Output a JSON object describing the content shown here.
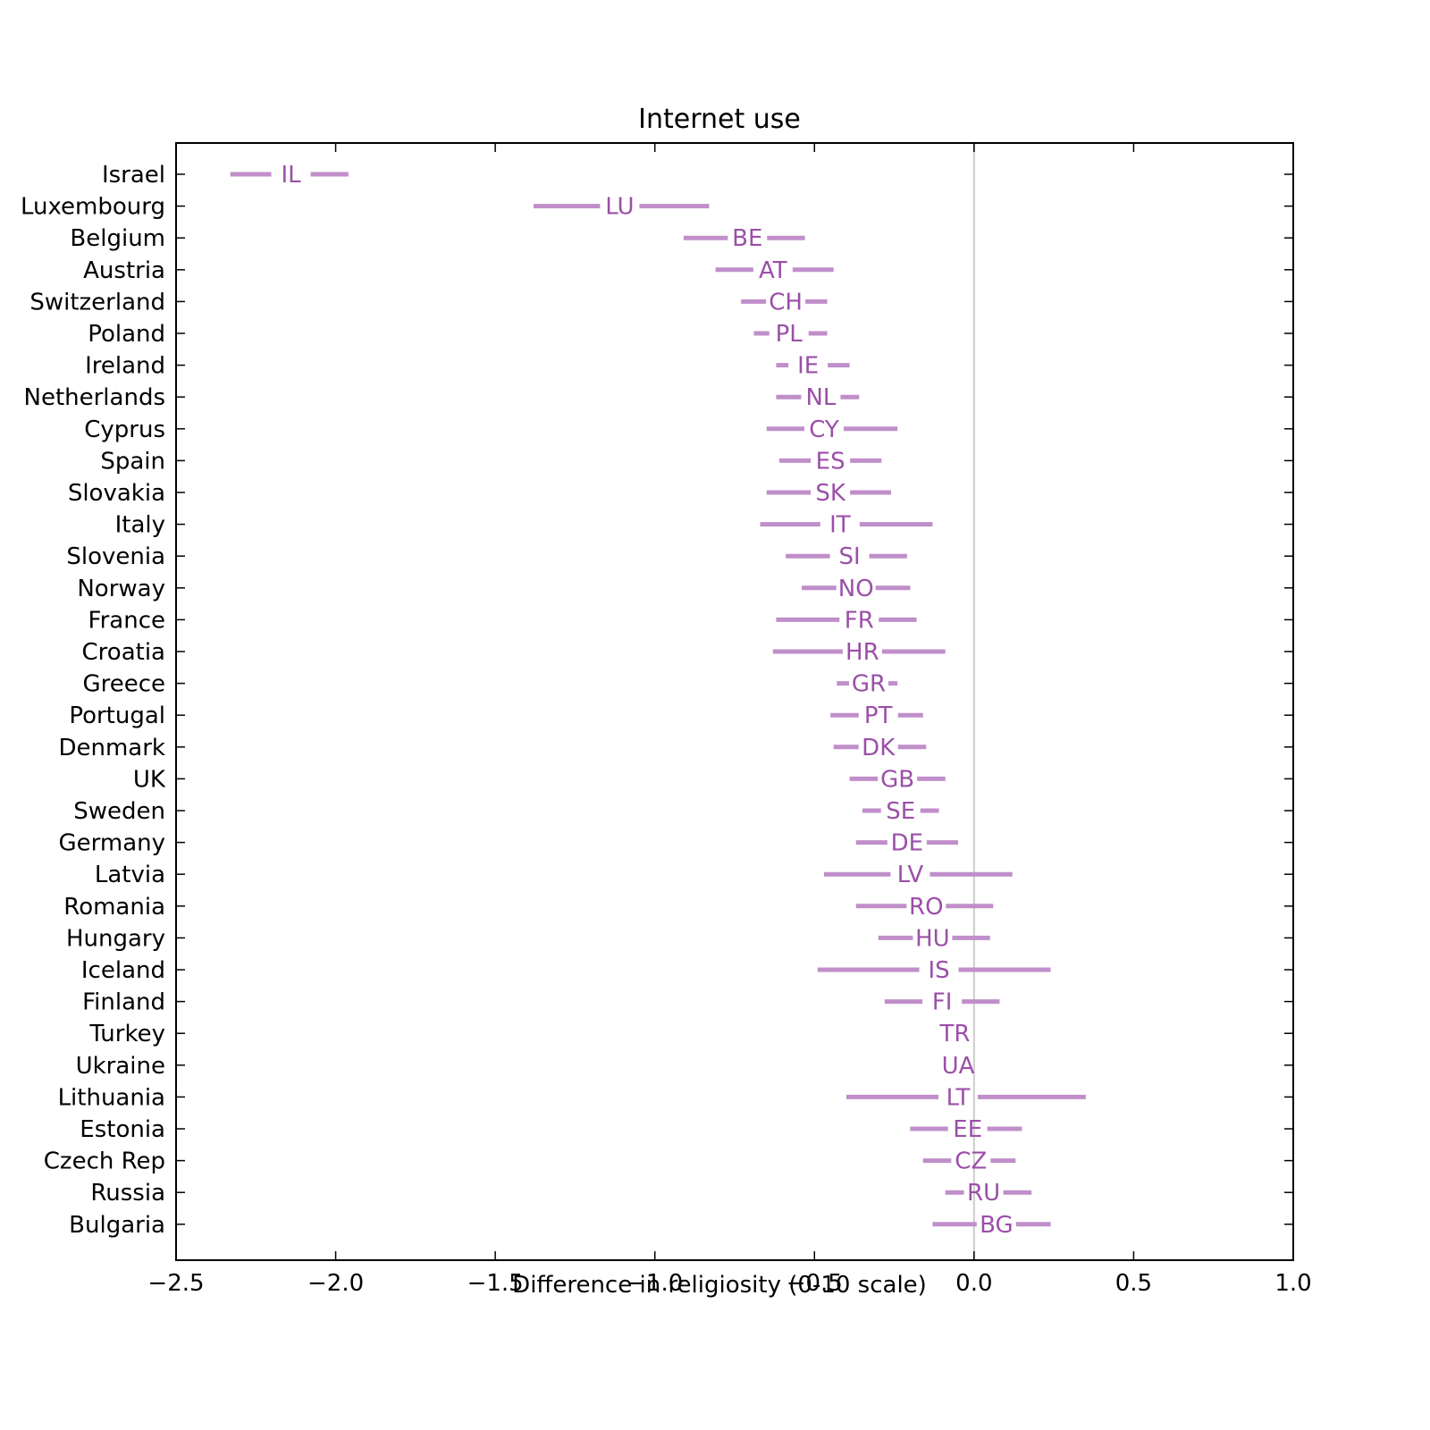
{
  "chart_data": {
    "type": "interval",
    "title": "Internet use",
    "xlabel": "Difference in religiosity (0-10 scale)",
    "ylabel": "",
    "xlim": [
      -2.5,
      1.0
    ],
    "xticks": [
      -2.5,
      -2.0,
      -1.5,
      -1.0,
      -0.5,
      0.0,
      0.5,
      1.0
    ],
    "xtick_labels": [
      "−2.5",
      "−2.0",
      "−1.5",
      "−1.0",
      "−0.5",
      "0.0",
      "0.5",
      "1.0"
    ],
    "reference_line_x": 0.0,
    "grid": false,
    "colors": {
      "interval": "#C08FCA",
      "code_text": "#9B4FA8",
      "reference_line": "#CCCCCC"
    },
    "rows": [
      {
        "country": "Israel",
        "code": "IL",
        "low": -2.33,
        "high": -1.96,
        "center": -2.14
      },
      {
        "country": "Luxembourg",
        "code": "LU",
        "low": -1.38,
        "high": -0.83,
        "center": -1.11
      },
      {
        "country": "Belgium",
        "code": "BE",
        "low": -0.91,
        "high": -0.53,
        "center": -0.71
      },
      {
        "country": "Austria",
        "code": "AT",
        "low": -0.81,
        "high": -0.44,
        "center": -0.63
      },
      {
        "country": "Switzerland",
        "code": "CH",
        "low": -0.73,
        "high": -0.46,
        "center": -0.59
      },
      {
        "country": "Poland",
        "code": "PL",
        "low": -0.69,
        "high": -0.46,
        "center": -0.58
      },
      {
        "country": "Ireland",
        "code": "IE",
        "low": -0.62,
        "high": -0.39,
        "center": -0.52
      },
      {
        "country": "Netherlands",
        "code": "NL",
        "low": -0.62,
        "high": -0.36,
        "center": -0.48
      },
      {
        "country": "Cyprus",
        "code": "CY",
        "low": -0.65,
        "high": -0.24,
        "center": -0.47
      },
      {
        "country": "Spain",
        "code": "ES",
        "low": -0.61,
        "high": -0.29,
        "center": -0.45
      },
      {
        "country": "Slovakia",
        "code": "SK",
        "low": -0.65,
        "high": -0.26,
        "center": -0.45
      },
      {
        "country": "Italy",
        "code": "IT",
        "low": -0.67,
        "high": -0.13,
        "center": -0.42
      },
      {
        "country": "Slovenia",
        "code": "SI",
        "low": -0.59,
        "high": -0.21,
        "center": -0.39
      },
      {
        "country": "Norway",
        "code": "NO",
        "low": -0.54,
        "high": -0.2,
        "center": -0.37
      },
      {
        "country": "France",
        "code": "FR",
        "low": -0.62,
        "high": -0.18,
        "center": -0.36
      },
      {
        "country": "Croatia",
        "code": "HR",
        "low": -0.63,
        "high": -0.09,
        "center": -0.35
      },
      {
        "country": "Greece",
        "code": "GR",
        "low": -0.43,
        "high": -0.24,
        "center": -0.33
      },
      {
        "country": "Portugal",
        "code": "PT",
        "low": -0.45,
        "high": -0.16,
        "center": -0.3
      },
      {
        "country": "Denmark",
        "code": "DK",
        "low": -0.44,
        "high": -0.15,
        "center": -0.3
      },
      {
        "country": "UK",
        "code": "GB",
        "low": -0.39,
        "high": -0.09,
        "center": -0.24
      },
      {
        "country": "Sweden",
        "code": "SE",
        "low": -0.35,
        "high": -0.11,
        "center": -0.23
      },
      {
        "country": "Germany",
        "code": "DE",
        "low": -0.37,
        "high": -0.05,
        "center": -0.21
      },
      {
        "country": "Latvia",
        "code": "LV",
        "low": -0.47,
        "high": 0.12,
        "center": -0.2
      },
      {
        "country": "Romania",
        "code": "RO",
        "low": -0.37,
        "high": 0.06,
        "center": -0.15
      },
      {
        "country": "Hungary",
        "code": "HU",
        "low": -0.3,
        "high": 0.05,
        "center": -0.13
      },
      {
        "country": "Iceland",
        "code": "IS",
        "low": -0.49,
        "high": 0.24,
        "center": -0.11
      },
      {
        "country": "Finland",
        "code": "FI",
        "low": -0.28,
        "high": 0.08,
        "center": -0.1
      },
      {
        "country": "Turkey",
        "code": "TR",
        "low": -0.07,
        "high": 0.0,
        "center": -0.06
      },
      {
        "country": "Ukraine",
        "code": "UA",
        "low": -0.05,
        "high": -0.05,
        "center": -0.05
      },
      {
        "country": "Lithuania",
        "code": "LT",
        "low": -0.4,
        "high": 0.35,
        "center": -0.05
      },
      {
        "country": "Estonia",
        "code": "EE",
        "low": -0.2,
        "high": 0.15,
        "center": -0.02
      },
      {
        "country": "Czech Rep",
        "code": "CZ",
        "low": -0.16,
        "high": 0.13,
        "center": -0.01
      },
      {
        "country": "Russia",
        "code": "RU",
        "low": -0.09,
        "high": 0.18,
        "center": 0.03
      },
      {
        "country": "Bulgaria",
        "code": "BG",
        "low": -0.13,
        "high": 0.24,
        "center": 0.07
      }
    ]
  }
}
